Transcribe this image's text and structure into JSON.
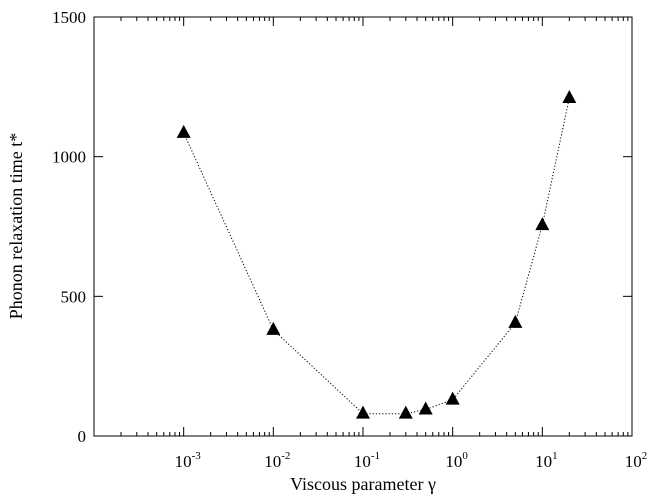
{
  "chart_data": {
    "type": "scatter",
    "title": "",
    "xlabel": "Viscous parameter γ",
    "ylabel": "Phonon relaxation time t*",
    "x_scale": "log",
    "xlim": [
      0.0001,
      100
    ],
    "ylim": [
      0,
      1500
    ],
    "x_ticks": [
      {
        "base": "10",
        "exp": "-3",
        "value": 0.001
      },
      {
        "base": "10",
        "exp": "-2",
        "value": 0.01
      },
      {
        "base": "10",
        "exp": "-1",
        "value": 0.1
      },
      {
        "base": "10",
        "exp": "0",
        "value": 1
      },
      {
        "base": "10",
        "exp": "1",
        "value": 10
      },
      {
        "base": "10",
        "exp": "2",
        "value": 100
      }
    ],
    "y_ticks": [
      {
        "label": "0",
        "value": 0
      },
      {
        "label": "500",
        "value": 500
      },
      {
        "label": "1000",
        "value": 1000
      },
      {
        "label": "1500",
        "value": 1500
      }
    ],
    "grid": false,
    "legend": "none",
    "series": [
      {
        "marker": "filled-triangle",
        "line": "dotted",
        "color": "#000000",
        "x": [
          0.001,
          0.01,
          0.1,
          0.3,
          0.5,
          1,
          5,
          10,
          20
        ],
        "y": [
          1085,
          380,
          80,
          80,
          95,
          130,
          405,
          755,
          1210
        ]
      }
    ]
  }
}
